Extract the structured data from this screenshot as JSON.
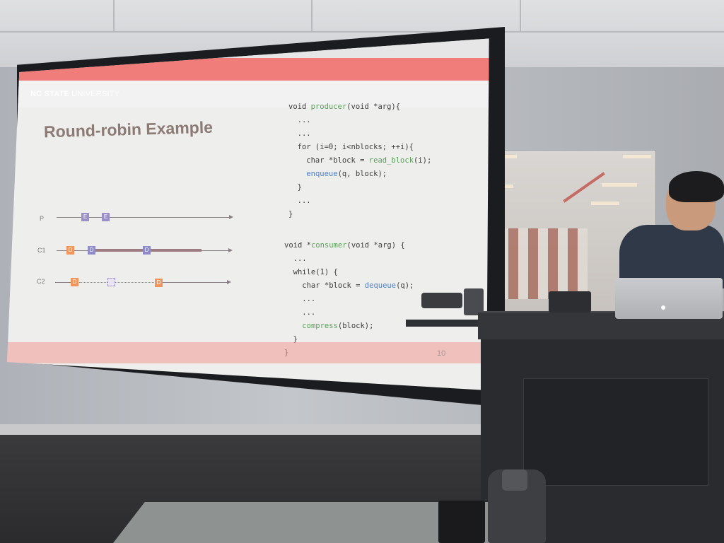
{
  "slide": {
    "university_bold": "NC STATE",
    "university_light": " UNIVERSITY",
    "title": "Round-robin Example",
    "page_number": "10"
  },
  "timeline": {
    "rows": [
      {
        "label": "P",
        "blocks": [
          "E",
          "E"
        ]
      },
      {
        "label": "C1",
        "blocks": [
          "D",
          "D",
          "D"
        ]
      },
      {
        "label": "C2",
        "blocks": [
          "D",
          "",
          "D"
        ]
      }
    ]
  },
  "code": {
    "producer": [
      "void producer(void *arg){",
      "  ...",
      "  ...",
      "  for (i=0; i<nblocks; ++i){",
      "    char *block = read_block(i);",
      "    enqueue(q, block);",
      "  }",
      "  ...",
      "}"
    ],
    "consumer": [
      "void *consumer(void *arg) {",
      "  ...",
      "  while(1) {",
      "    char *block = dequeue(q);",
      "    ...",
      "    ...",
      "    compress(block);",
      "  }",
      "}"
    ]
  },
  "colors": {
    "header_band": "#f07d7a",
    "title_text": "#8c7a74",
    "code_green": "#5aa05a",
    "code_blue": "#4f7fc7",
    "block_orange": "#f0955c",
    "block_purple": "#8f8ac8"
  },
  "icons": {
    "laptop_logo": "apple-logo-icon"
  }
}
